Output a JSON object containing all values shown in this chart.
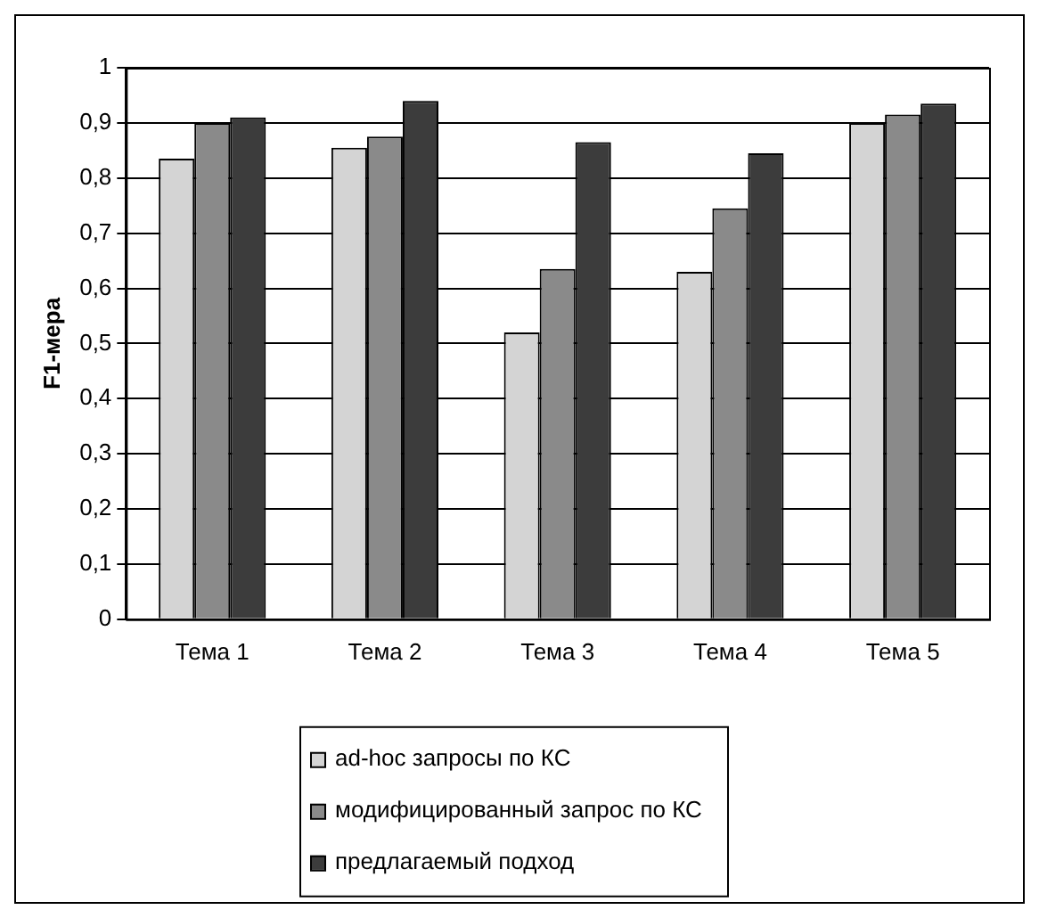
{
  "chart_data": {
    "type": "bar",
    "ylabel": "F1-мера",
    "categories": [
      "Тема 1",
      "Тема 2",
      "Тема 3",
      "Тема 4",
      "Тема 5"
    ],
    "series": [
      {
        "name": "ad-hoc запросы по КС",
        "color": "#d4d4d4",
        "values": [
          0.835,
          0.855,
          0.52,
          0.63,
          0.9
        ]
      },
      {
        "name": "модифицированный запрос по КС",
        "color": "#8a8a8a",
        "values": [
          0.9,
          0.875,
          0.635,
          0.745,
          0.915
        ]
      },
      {
        "name": "предлагаемый подход",
        "color": "#3c3c3c",
        "values": [
          0.91,
          0.94,
          0.865,
          0.845,
          0.935
        ]
      }
    ],
    "ylim": [
      0,
      1
    ],
    "yticks": [
      0,
      {
        "value": 0.1,
        "label": "0,1"
      },
      {
        "value": 0.2,
        "label": "0,2"
      },
      {
        "value": 0.3,
        "label": "0,3"
      },
      {
        "value": 0.4,
        "label": "0,4"
      },
      {
        "value": 0.5,
        "label": "0,5"
      },
      {
        "value": 0.6,
        "label": "0,6"
      },
      {
        "value": 0.7,
        "label": "0,7"
      },
      {
        "value": 0.8,
        "label": "0,8"
      },
      {
        "value": 0.9,
        "label": "0,9"
      },
      1
    ],
    "grid": "y",
    "legend": "bottom"
  }
}
